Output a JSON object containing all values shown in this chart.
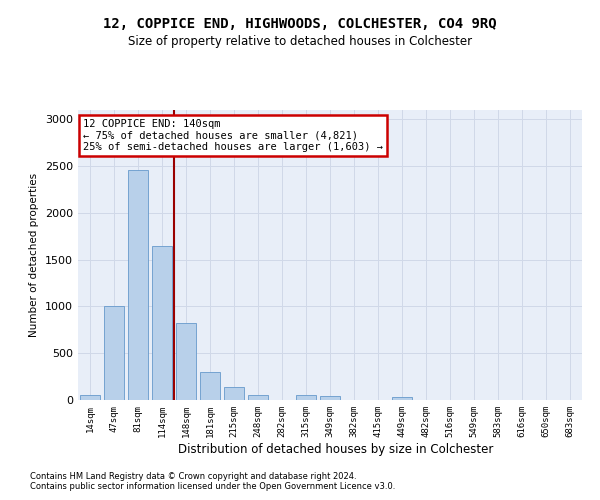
{
  "title": "12, COPPICE END, HIGHWOODS, COLCHESTER, CO4 9RQ",
  "subtitle": "Size of property relative to detached houses in Colchester",
  "xlabel": "Distribution of detached houses by size in Colchester",
  "ylabel": "Number of detached properties",
  "bar_labels": [
    "14sqm",
    "47sqm",
    "81sqm",
    "114sqm",
    "148sqm",
    "181sqm",
    "215sqm",
    "248sqm",
    "282sqm",
    "315sqm",
    "349sqm",
    "382sqm",
    "415sqm",
    "449sqm",
    "482sqm",
    "516sqm",
    "549sqm",
    "583sqm",
    "616sqm",
    "650sqm",
    "683sqm"
  ],
  "bar_values": [
    55,
    1000,
    2460,
    1650,
    820,
    295,
    135,
    50,
    0,
    55,
    40,
    0,
    0,
    30,
    0,
    0,
    0,
    0,
    0,
    0,
    0
  ],
  "bar_color": "#b8d0ea",
  "bar_edgecolor": "#6699cc",
  "vline_x": 3.5,
  "vline_color": "#990000",
  "annotation_text": "12 COPPICE END: 140sqm\n← 75% of detached houses are smaller (4,821)\n25% of semi-detached houses are larger (1,603) →",
  "annotation_box_edgecolor": "#cc0000",
  "ylim": [
    0,
    3100
  ],
  "yticks": [
    0,
    500,
    1000,
    1500,
    2000,
    2500,
    3000
  ],
  "grid_color": "#d0d8e8",
  "background_color": "#e8eef8",
  "footer_line1": "Contains HM Land Registry data © Crown copyright and database right 2024.",
  "footer_line2": "Contains public sector information licensed under the Open Government Licence v3.0."
}
